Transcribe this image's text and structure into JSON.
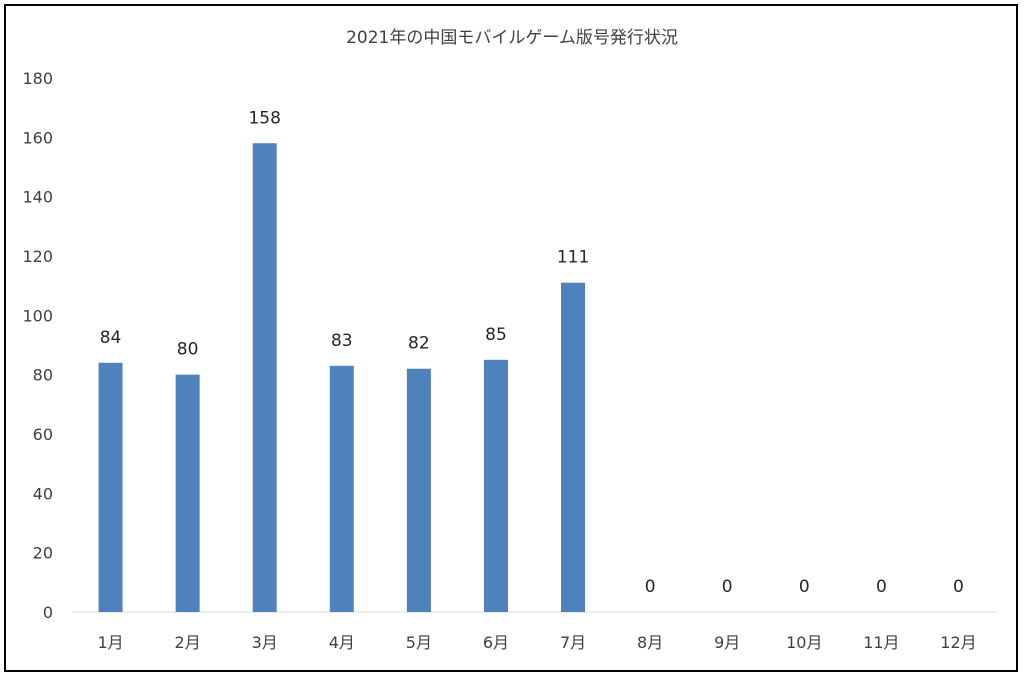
{
  "chart_data": {
    "type": "bar",
    "title": "2021年の中国モバイルゲーム版号発行状況",
    "xlabel": "",
    "ylabel": "",
    "categories": [
      "1月",
      "2月",
      "3月",
      "4月",
      "5月",
      "6月",
      "7月",
      "8月",
      "9月",
      "10月",
      "11月",
      "12月"
    ],
    "values": [
      84,
      80,
      158,
      83,
      82,
      85,
      111,
      0,
      0,
      0,
      0,
      0
    ],
    "ylim": [
      0,
      180
    ],
    "yticks": [
      0,
      20,
      40,
      60,
      80,
      100,
      120,
      140,
      160,
      180
    ],
    "grid": false,
    "legend": "none",
    "bar_color": "#4f81bd"
  }
}
